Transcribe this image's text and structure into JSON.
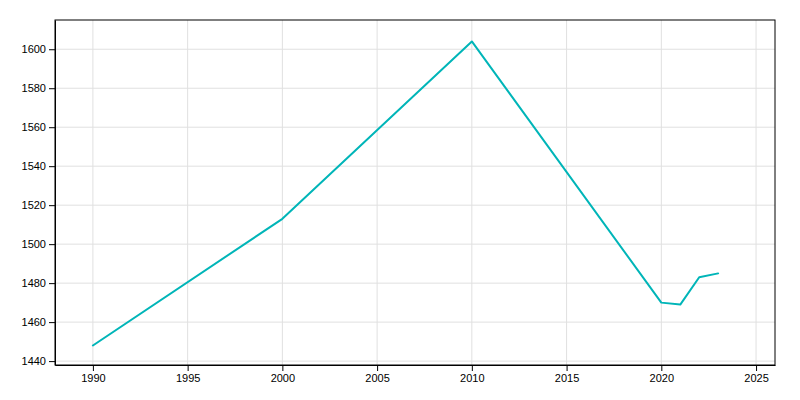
{
  "chart_data": {
    "type": "line",
    "x": [
      1990,
      2000,
      2010,
      2020,
      2021,
      2022,
      2023
    ],
    "values": [
      1448,
      1513,
      1604,
      1470,
      1469,
      1483,
      1485
    ],
    "color": "#00b5b8",
    "xlim": [
      1988,
      2026
    ],
    "ylim": [
      1438,
      1615
    ],
    "xticks": [
      1990,
      1995,
      2000,
      2005,
      2010,
      2015,
      2020,
      2025
    ],
    "yticks": [
      1440,
      1460,
      1480,
      1500,
      1520,
      1540,
      1560,
      1580,
      1600
    ],
    "grid": true
  }
}
